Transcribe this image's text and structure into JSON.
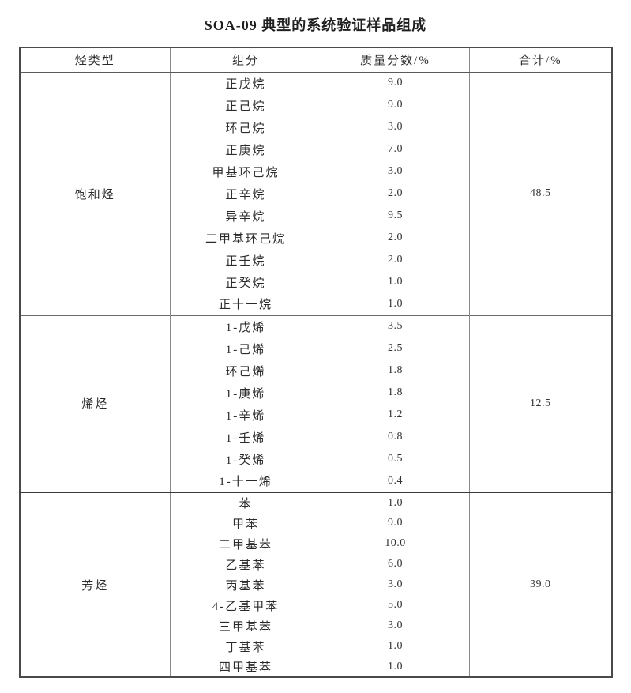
{
  "title": "SOA-09 典型的系统验证样品组成",
  "table": {
    "headers": [
      "烃类型",
      "组分",
      "质量分数/%",
      "合计/%"
    ],
    "groups": [
      {
        "type": "饱和烃",
        "total": "48.5",
        "components": [
          {
            "name": "正戊烷",
            "value": "9.0"
          },
          {
            "name": "正己烷",
            "value": "9.0"
          },
          {
            "name": "环己烷",
            "value": "3.0"
          },
          {
            "name": "正庚烷",
            "value": "7.0"
          },
          {
            "name": "甲基环己烷",
            "value": "3.0"
          },
          {
            "name": "正辛烷",
            "value": "2.0"
          },
          {
            "name": "异辛烷",
            "value": "9.5"
          },
          {
            "name": "二甲基环己烷",
            "value": "2.0"
          },
          {
            "name": "正壬烷",
            "value": "2.0"
          },
          {
            "name": "正癸烷",
            "value": "1.0"
          },
          {
            "name": "正十一烷",
            "value": "1.0"
          }
        ]
      },
      {
        "type": "烯烃",
        "total": "12.5",
        "components": [
          {
            "name": "1-戊烯",
            "value": "3.5"
          },
          {
            "name": "1-己烯",
            "value": "2.5"
          },
          {
            "name": "环己烯",
            "value": "1.8"
          },
          {
            "name": "1-庚烯",
            "value": "1.8"
          },
          {
            "name": "1-辛烯",
            "value": "1.2"
          },
          {
            "name": "1-壬烯",
            "value": "0.8"
          },
          {
            "name": "1-癸烯",
            "value": "0.5"
          },
          {
            "name": "1-十一烯",
            "value": "0.4"
          }
        ]
      },
      {
        "type": "芳烃",
        "total": "39.0",
        "components": [
          {
            "name": "苯",
            "value": "1.0"
          },
          {
            "name": "甲苯",
            "value": "9.0"
          },
          {
            "name": "二甲基苯",
            "value": "10.0"
          },
          {
            "name": "乙基苯",
            "value": "6.0"
          },
          {
            "name": "丙基苯",
            "value": "3.0"
          },
          {
            "name": "4-乙基甲苯",
            "value": "5.0"
          },
          {
            "name": "三甲基苯",
            "value": "3.0"
          },
          {
            "name": "丁基苯",
            "value": "1.0"
          },
          {
            "name": "四甲基苯",
            "value": "1.0"
          }
        ]
      }
    ]
  }
}
